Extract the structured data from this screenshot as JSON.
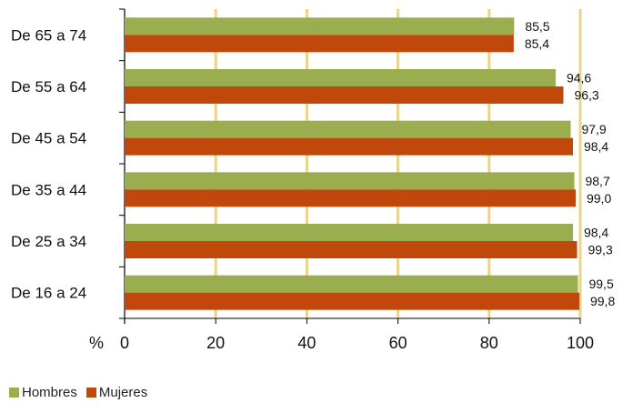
{
  "chart_data": {
    "type": "bar",
    "orientation": "horizontal",
    "categories": [
      "De 65 a 74",
      "De 55 a 64",
      "De 45 a 54",
      "De 35 a 44",
      "De 25 a 34",
      "De 16 a 24"
    ],
    "series": [
      {
        "name": "Hombres",
        "color": "#9bae4f",
        "values": [
          85.5,
          94.6,
          97.9,
          98.7,
          98.4,
          99.5
        ],
        "labels": [
          "85,5",
          "94,6",
          "97,9",
          "98,7",
          "98,4",
          "99,5"
        ]
      },
      {
        "name": "Mujeres",
        "color": "#c0480b",
        "values": [
          85.4,
          96.3,
          98.4,
          99.0,
          99.3,
          99.8
        ],
        "labels": [
          "85,4",
          "96,3",
          "98,4",
          "99,0",
          "99,3",
          "99,8"
        ]
      }
    ],
    "xlabel": "%",
    "xlim": [
      0,
      100
    ],
    "xticks": [
      "0",
      "20",
      "40",
      "60",
      "80",
      "100"
    ],
    "gridline_color": "#ead48a",
    "grid": true,
    "legend_position": "bottom-left"
  }
}
